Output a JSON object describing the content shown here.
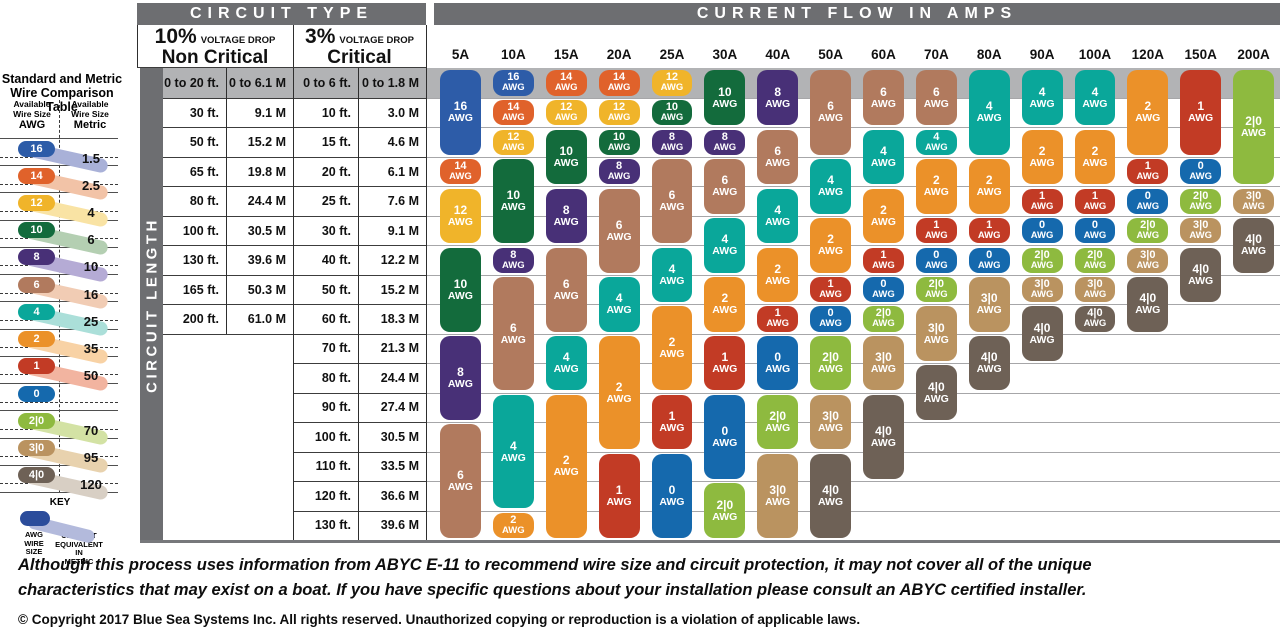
{
  "header": {
    "circuit_type": "CIRCUIT TYPE",
    "current_flow": "CURRENT FLOW IN AMPS",
    "circuit_length": "CIRCUIT LENGTH"
  },
  "voltage_columns": [
    {
      "pct": "10%",
      "drop": "VOLTAGE DROP",
      "name": "Non Critical"
    },
    {
      "pct": "3%",
      "drop": "VOLTAGE DROP",
      "name": "Critical"
    }
  ],
  "sidebar": {
    "title_line1": "Standard and Metric",
    "title_line2": "Wire Comparison Table",
    "col1_header": [
      "Available",
      "Wire Size",
      "AWG"
    ],
    "col2_header": [
      "Available",
      "Wire Size",
      "Metric"
    ],
    "rows": [
      {
        "awg": "16",
        "metric": "1.5"
      },
      {
        "awg": "14",
        "metric": "2.5"
      },
      {
        "awg": "12",
        "metric": "4"
      },
      {
        "awg": "10",
        "metric": "6"
      },
      {
        "awg": "8",
        "metric": "10"
      },
      {
        "awg": "6",
        "metric": "16"
      },
      {
        "awg": "4",
        "metric": "25"
      },
      {
        "awg": "2",
        "metric": "35"
      },
      {
        "awg": "1",
        "metric": "50"
      },
      {
        "awg": "0",
        "metric": ""
      },
      {
        "awg": "2|0",
        "metric": "70"
      },
      {
        "awg": "3|0",
        "metric": "95"
      },
      {
        "awg": "4|0",
        "metric": "120"
      }
    ],
    "key": {
      "title": "KEY",
      "left_label": "AWG WIRE SIZE",
      "right_label": "CLOSEST EQUIVALENT IN METRIC",
      "pill_color": "#2b4c9b",
      "band_color": "#b3badc"
    }
  },
  "colors": {
    "header_bar": "#6d6e71",
    "gray_band": "#b2b3b5",
    "wire": {
      "16": "#2d5ca8",
      "14": "#e0622b",
      "12": "#f0b42a",
      "10": "#136b3c",
      "8": "#483077",
      "6": "#b17a5e",
      "4": "#0aa79a",
      "2": "#eb9129",
      "1": "#c23b25",
      "0": "#1569ad",
      "2|0": "#8eba3f",
      "3|0": "#ba9360",
      "4|0": "#6e6156"
    },
    "wire_tint": {
      "16": "#a9b1d8",
      "14": "#f2c3a7",
      "12": "#f9e3a4",
      "10": "#b4cfb2",
      "8": "#b5abd5",
      "6": "#f1ccb4",
      "4": "#abdfd9",
      "2": "#f8d2a5",
      "1": "#f2b4a0",
      "0": "",
      "2|0": "#d3e2a4",
      "3|0": "#e8d2ae",
      "4|0": "#d8cfc4"
    }
  },
  "chart_data": {
    "type": "table",
    "x_axis_label": "CURRENT FLOW IN AMPS",
    "y_axis_label": "CIRCUIT LENGTH",
    "amp_columns": [
      "5A",
      "10A",
      "15A",
      "20A",
      "25A",
      "30A",
      "40A",
      "50A",
      "60A",
      "70A",
      "80A",
      "90A",
      "100A",
      "120A",
      "150A",
      "200A"
    ],
    "length_rows": [
      {
        "nc_ft": "0 to 20 ft.",
        "nc_m": "0 to 6.1 M",
        "c_ft": "0 to 6 ft.",
        "c_m": "0 to 1.8 M"
      },
      {
        "nc_ft": "30 ft.",
        "nc_m": "9.1 M",
        "c_ft": "10 ft.",
        "c_m": "3.0 M"
      },
      {
        "nc_ft": "50 ft.",
        "nc_m": "15.2 M",
        "c_ft": "15 ft.",
        "c_m": "4.6 M"
      },
      {
        "nc_ft": "65 ft.",
        "nc_m": "19.8 M",
        "c_ft": "20 ft.",
        "c_m": "6.1 M"
      },
      {
        "nc_ft": "80 ft.",
        "nc_m": "24.4 M",
        "c_ft": "25 ft.",
        "c_m": "7.6 M"
      },
      {
        "nc_ft": "100 ft.",
        "nc_m": "30.5 M",
        "c_ft": "30 ft.",
        "c_m": "9.1 M"
      },
      {
        "nc_ft": "130 ft.",
        "nc_m": "39.6 M",
        "c_ft": "40 ft.",
        "c_m": "12.2 M"
      },
      {
        "nc_ft": "165 ft.",
        "nc_m": "50.3 M",
        "c_ft": "50 ft.",
        "c_m": "15.2 M"
      },
      {
        "nc_ft": "200 ft.",
        "nc_m": "61.0 M",
        "c_ft": "60 ft.",
        "c_m": "18.3 M"
      },
      {
        "nc_ft": "",
        "nc_m": "",
        "c_ft": "70 ft.",
        "c_m": "21.3 M"
      },
      {
        "nc_ft": "",
        "nc_m": "",
        "c_ft": "80 ft.",
        "c_m": "24.4 M"
      },
      {
        "nc_ft": "",
        "nc_m": "",
        "c_ft": "90 ft.",
        "c_m": "27.4 M"
      },
      {
        "nc_ft": "",
        "nc_m": "",
        "c_ft": "100 ft.",
        "c_m": "30.5 M"
      },
      {
        "nc_ft": "",
        "nc_m": "",
        "c_ft": "110 ft.",
        "c_m": "33.5 M"
      },
      {
        "nc_ft": "",
        "nc_m": "",
        "c_ft": "120 ft.",
        "c_m": "36.6 M"
      },
      {
        "nc_ft": "",
        "nc_m": "",
        "c_ft": "130 ft.",
        "c_m": "39.6 M"
      }
    ],
    "recommendations": [
      {
        "amps": "5A",
        "segments": [
          [
            "16",
            0,
            2
          ],
          [
            "14",
            3,
            3
          ],
          [
            "12",
            4,
            5
          ],
          [
            "10",
            6,
            8
          ],
          [
            "8",
            9,
            11
          ],
          [
            "6",
            12,
            15
          ]
        ]
      },
      {
        "amps": "10A",
        "segments": [
          [
            "16",
            0,
            0
          ],
          [
            "14",
            1,
            1
          ],
          [
            "12",
            2,
            2
          ],
          [
            "10",
            3,
            5
          ],
          [
            "8",
            6,
            6
          ],
          [
            "6",
            7,
            10
          ],
          [
            "4",
            11,
            14
          ],
          [
            "2",
            15,
            15
          ]
        ]
      },
      {
        "amps": "15A",
        "segments": [
          [
            "14",
            0,
            0
          ],
          [
            "12",
            1,
            1
          ],
          [
            "10",
            2,
            3
          ],
          [
            "8",
            4,
            5
          ],
          [
            "6",
            6,
            8
          ],
          [
            "4",
            9,
            10
          ],
          [
            "2",
            11,
            15
          ]
        ]
      },
      {
        "amps": "20A",
        "segments": [
          [
            "14",
            0,
            0
          ],
          [
            "12",
            1,
            1
          ],
          [
            "10",
            2,
            2
          ],
          [
            "8",
            3,
            3
          ],
          [
            "6",
            4,
            6
          ],
          [
            "4",
            7,
            8
          ],
          [
            "2",
            9,
            12
          ],
          [
            "1",
            13,
            15
          ]
        ]
      },
      {
        "amps": "25A",
        "segments": [
          [
            "12",
            0,
            0
          ],
          [
            "10",
            1,
            1
          ],
          [
            "8",
            2,
            2
          ],
          [
            "6",
            3,
            5
          ],
          [
            "4",
            6,
            7
          ],
          [
            "2",
            8,
            10
          ],
          [
            "1",
            11,
            12
          ],
          [
            "0",
            13,
            15
          ]
        ]
      },
      {
        "amps": "30A",
        "segments": [
          [
            "10",
            0,
            1
          ],
          [
            "8",
            2,
            2
          ],
          [
            "6",
            3,
            4
          ],
          [
            "4",
            5,
            6
          ],
          [
            "2",
            7,
            8
          ],
          [
            "1",
            9,
            10
          ],
          [
            "0",
            11,
            13
          ],
          [
            "2|0",
            14,
            15
          ]
        ]
      },
      {
        "amps": "40A",
        "segments": [
          [
            "8",
            0,
            1
          ],
          [
            "6",
            2,
            3
          ],
          [
            "4",
            4,
            5
          ],
          [
            "2",
            6,
            7
          ],
          [
            "1",
            8,
            8
          ],
          [
            "0",
            9,
            10
          ],
          [
            "2|0",
            11,
            12
          ],
          [
            "3|0",
            13,
            15
          ]
        ]
      },
      {
        "amps": "50A",
        "segments": [
          [
            "6",
            0,
            2
          ],
          [
            "4",
            3,
            4
          ],
          [
            "2",
            5,
            6
          ],
          [
            "1",
            7,
            7
          ],
          [
            "0",
            8,
            8
          ],
          [
            "2|0",
            9,
            10
          ],
          [
            "3|0",
            11,
            12
          ],
          [
            "4|0",
            13,
            15
          ]
        ]
      },
      {
        "amps": "60A",
        "segments": [
          [
            "6",
            0,
            1
          ],
          [
            "4",
            2,
            3
          ],
          [
            "2",
            4,
            5
          ],
          [
            "1",
            6,
            6
          ],
          [
            "0",
            7,
            7
          ],
          [
            "2|0",
            8,
            8
          ],
          [
            "3|0",
            9,
            10
          ],
          [
            "4|0",
            11,
            13
          ]
        ]
      },
      {
        "amps": "70A",
        "segments": [
          [
            "6",
            0,
            1
          ],
          [
            "4",
            2,
            2
          ],
          [
            "2",
            3,
            4
          ],
          [
            "1",
            5,
            5
          ],
          [
            "0",
            6,
            6
          ],
          [
            "2|0",
            7,
            7
          ],
          [
            "3|0",
            8,
            9
          ],
          [
            "4|0",
            10,
            11
          ]
        ]
      },
      {
        "amps": "80A",
        "segments": [
          [
            "4",
            0,
            2
          ],
          [
            "2",
            3,
            4
          ],
          [
            "1",
            5,
            5
          ],
          [
            "0",
            6,
            6
          ],
          [
            "3|0",
            7,
            8
          ],
          [
            "4|0",
            9,
            10
          ]
        ]
      },
      {
        "amps": "90A",
        "segments": [
          [
            "4",
            0,
            1
          ],
          [
            "2",
            2,
            3
          ],
          [
            "1",
            4,
            4
          ],
          [
            "0",
            5,
            5
          ],
          [
            "2|0",
            6,
            6
          ],
          [
            "3|0",
            7,
            7
          ],
          [
            "4|0",
            8,
            9
          ]
        ]
      },
      {
        "amps": "100A",
        "segments": [
          [
            "4",
            0,
            1
          ],
          [
            "2",
            2,
            3
          ],
          [
            "1",
            4,
            4
          ],
          [
            "0",
            5,
            5
          ],
          [
            "2|0",
            6,
            6
          ],
          [
            "3|0",
            7,
            7
          ],
          [
            "4|0",
            8,
            8
          ]
        ]
      },
      {
        "amps": "120A",
        "segments": [
          [
            "2",
            0,
            2
          ],
          [
            "1",
            3,
            3
          ],
          [
            "0",
            4,
            4
          ],
          [
            "2|0",
            5,
            5
          ],
          [
            "3|0",
            6,
            6
          ],
          [
            "4|0",
            7,
            8
          ]
        ]
      },
      {
        "amps": "150A",
        "segments": [
          [
            "1",
            0,
            2
          ],
          [
            "0",
            3,
            3
          ],
          [
            "2|0",
            4,
            4
          ],
          [
            "3|0",
            5,
            5
          ],
          [
            "4|0",
            6,
            7
          ]
        ]
      },
      {
        "amps": "200A",
        "segments": [
          [
            "2|0",
            0,
            3
          ],
          [
            "3|0",
            4,
            4
          ],
          [
            "4|0",
            5,
            6
          ]
        ]
      }
    ],
    "cell_unit": "AWG"
  },
  "footer": {
    "note_line1": "Although this process uses information from ABYC E-11 to recommend wire size and circuit protection, it may not cover all of the unique",
    "note_line2": "characteristics that may exist on a boat. If you have specific questions about your installation please consult an ABYC certified installer.",
    "copyright": "© Copyright 2017 Blue Sea Systems Inc. All rights reserved. Unauthorized copying or reproduction is a violation of applicable laws."
  }
}
